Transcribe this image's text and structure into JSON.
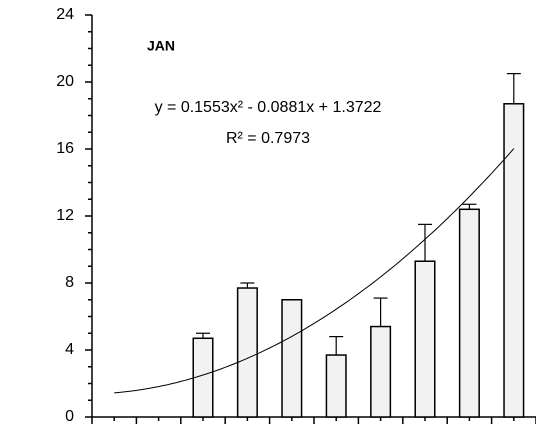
{
  "chart_data": {
    "type": "bar",
    "annotation": "JAN",
    "equation": "y = 0.1553x² - 0.0881x + 1.3722",
    "r_squared": "R² = 0.7973",
    "trendline": {
      "type": "polynomial",
      "coefficients": [
        0.1553,
        -0.0881,
        1.3722
      ]
    },
    "categories": [
      null,
      null,
      null,
      null,
      null,
      null,
      null,
      null,
      null,
      null
    ],
    "values": [
      null,
      null,
      4.7,
      7.7,
      7.0,
      3.7,
      5.4,
      9.3,
      12.4,
      18.7
    ],
    "errors": [
      null,
      null,
      0.3,
      0.3,
      null,
      1.1,
      1.7,
      2.2,
      0.3,
      1.8
    ],
    "color": "#f2f2f2",
    "ylim": [
      0,
      24
    ],
    "yticks": [
      0,
      4,
      8,
      12,
      16,
      20,
      24
    ]
  }
}
